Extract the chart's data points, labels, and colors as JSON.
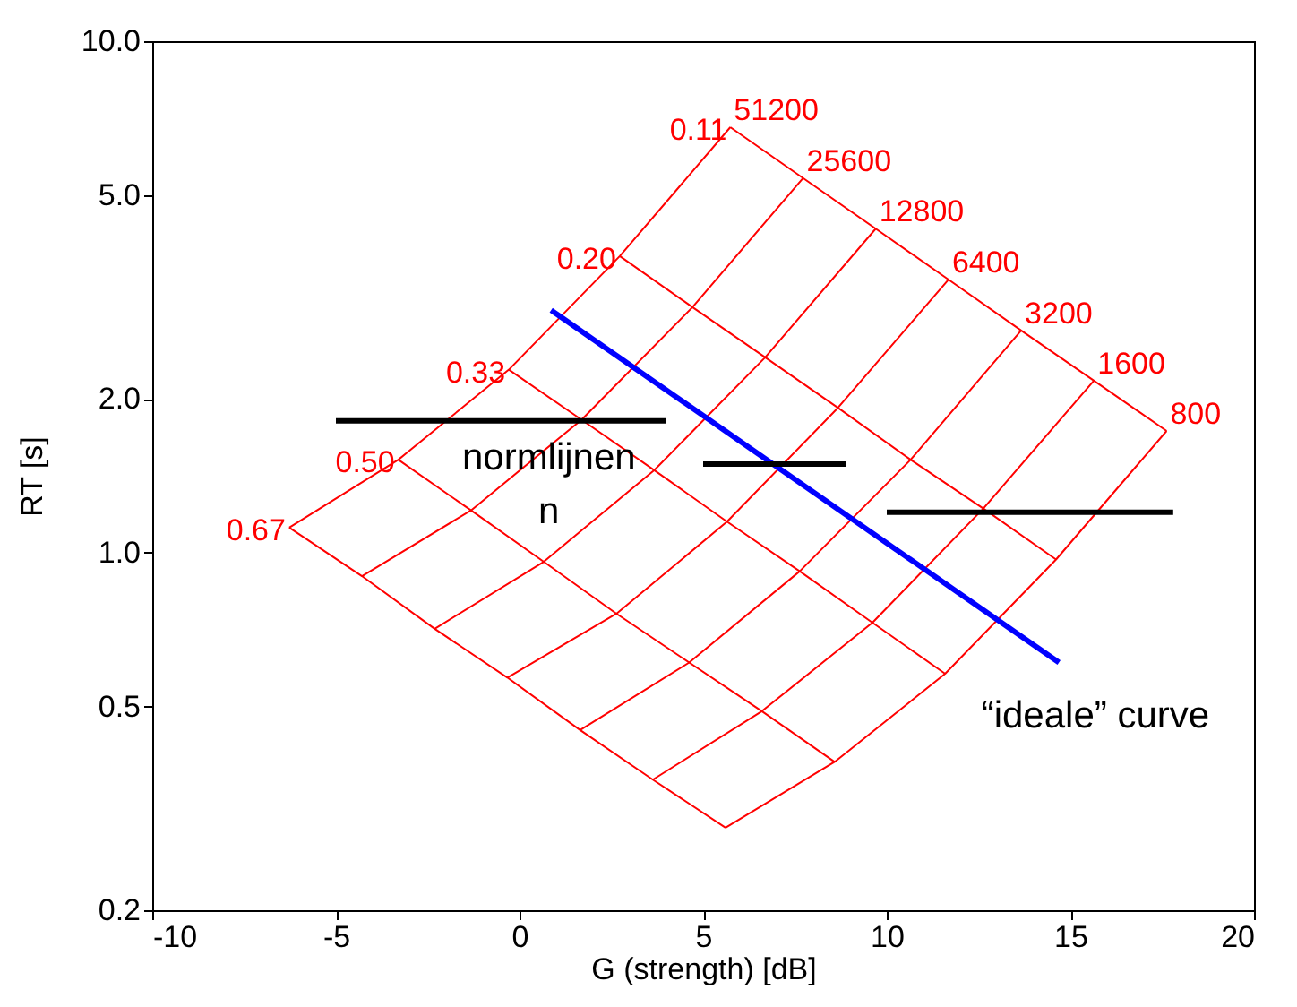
{
  "chart_data": {
    "type": "line",
    "xlabel": "G (strength) [dB]",
    "ylabel": "RT  [s]",
    "log": "y",
    "xlim": [
      -10,
      20
    ],
    "xticks": [
      -10,
      -5,
      0,
      5,
      10,
      15,
      20
    ],
    "ylim": [
      0.2,
      10
    ],
    "yticks": [
      0.2,
      0.5,
      {
        "value": 1,
        "label": "1.0"
      },
      {
        "value": 2,
        "label": "2.0"
      },
      {
        "value": 5,
        "label": "5.0"
      },
      {
        "value": 10,
        "label": "10.0"
      }
    ],
    "grid": false,
    "series": [
      {
        "name": "0.67",
        "color": "#ff0000",
        "x": [
          -6.27,
          -4.29,
          -2.31,
          -0.33,
          1.65,
          3.63,
          5.61
        ],
        "values": [
          1.12,
          0.9,
          0.71,
          0.57,
          0.45,
          0.36,
          0.29
        ]
      },
      {
        "name": "0.50",
        "color": "#ff0000",
        "x": [
          -3.3,
          -1.32,
          0.66,
          2.64,
          4.62,
          6.6,
          8.58
        ],
        "values": [
          1.52,
          1.21,
          0.96,
          0.76,
          0.61,
          0.49,
          0.39
        ]
      },
      {
        "name": "0.33",
        "color": "#ff0000",
        "x": [
          -0.29,
          1.69,
          3.67,
          5.65,
          7.63,
          9.61,
          11.59
        ],
        "values": [
          2.28,
          1.82,
          1.45,
          1.15,
          0.92,
          0.73,
          0.58
        ]
      },
      {
        "name": "0.20",
        "color": "#ff0000",
        "x": [
          2.73,
          4.71,
          6.69,
          8.67,
          10.65,
          12.63,
          14.61
        ],
        "values": [
          3.8,
          3.02,
          2.41,
          1.92,
          1.52,
          1.22,
          0.97
        ]
      },
      {
        "name": "0.11",
        "color": "#ff0000",
        "x": [
          5.74,
          7.72,
          9.7,
          11.68,
          13.66,
          15.64,
          17.62
        ],
        "values": [
          6.79,
          5.4,
          4.3,
          3.42,
          2.72,
          2.17,
          1.73
        ]
      },
      {
        "name": "51200",
        "color": "#ff0000",
        "x": [
          -6.27,
          -3.3,
          -0.29,
          2.73,
          5.74
        ],
        "values": [
          1.12,
          1.52,
          2.28,
          3.8,
          6.79
        ]
      },
      {
        "name": "25600",
        "color": "#ff0000",
        "x": [
          -4.29,
          -1.32,
          1.69,
          4.71,
          7.72
        ],
        "values": [
          0.9,
          1.21,
          1.82,
          3.02,
          5.4
        ]
      },
      {
        "name": "12800",
        "color": "#ff0000",
        "x": [
          -2.31,
          0.66,
          3.67,
          6.69,
          9.7
        ],
        "values": [
          0.71,
          0.96,
          1.45,
          2.41,
          4.3
        ]
      },
      {
        "name": "6400",
        "color": "#ff0000",
        "x": [
          -0.33,
          2.64,
          5.65,
          8.67,
          11.68
        ],
        "values": [
          0.57,
          0.76,
          1.15,
          1.92,
          3.42
        ]
      },
      {
        "name": "3200",
        "color": "#ff0000",
        "x": [
          1.65,
          4.62,
          7.63,
          10.65,
          13.66
        ],
        "values": [
          0.45,
          0.61,
          0.92,
          1.52,
          2.72
        ]
      },
      {
        "name": "1600",
        "color": "#ff0000",
        "x": [
          3.63,
          6.6,
          9.61,
          12.63,
          15.64
        ],
        "values": [
          0.36,
          0.49,
          0.73,
          1.22,
          2.17
        ]
      },
      {
        "name": "800",
        "color": "#ff0000",
        "x": [
          5.61,
          8.58,
          11.59,
          14.61,
          17.62
        ],
        "values": [
          0.29,
          0.39,
          0.58,
          0.97,
          1.73
        ]
      },
      {
        "color": "#0000ff",
        "x": [
          0.86,
          14.69
        ],
        "values": [
          2.98,
          0.61
        ]
      },
      {
        "color": "#000000",
        "x": [
          -5,
          4
        ],
        "values": [
          1.81,
          1.81
        ]
      },
      {
        "color": "#000000",
        "x": [
          5,
          8.9
        ],
        "values": [
          1.49,
          1.49
        ]
      },
      {
        "color": "#000000",
        "x": [
          10,
          17.8
        ],
        "values": [
          1.2,
          1.2
        ]
      }
    ],
    "annotations": [
      "normlijnen\nn",
      "“ideale” curve"
    ]
  }
}
